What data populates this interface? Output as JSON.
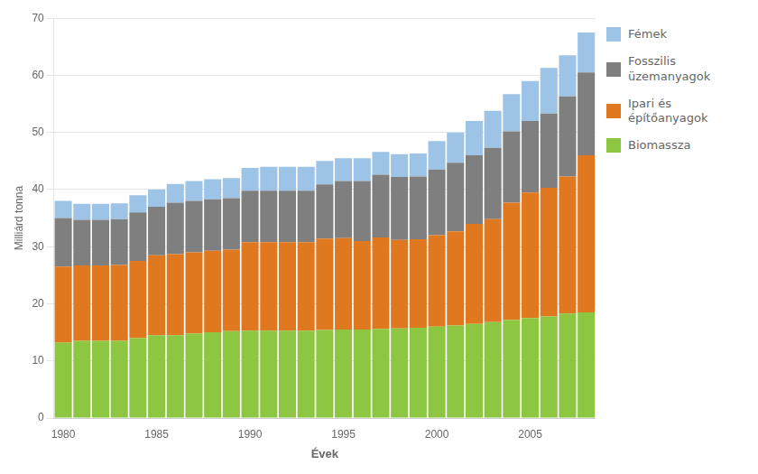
{
  "chart_data": {
    "type": "bar",
    "stacked": true,
    "categories": [
      "1980",
      null,
      null,
      null,
      null,
      "1985",
      null,
      null,
      null,
      null,
      "1990",
      null,
      null,
      null,
      null,
      "1995",
      null,
      null,
      null,
      null,
      "2000",
      null,
      null,
      null,
      null,
      "2005",
      null,
      null,
      null
    ],
    "series": [
      {
        "name": "Biomassza",
        "color": "#8DC641",
        "values": [
          13.2,
          13.5,
          13.5,
          13.5,
          14.0,
          14.5,
          14.5,
          14.8,
          15.0,
          15.2,
          15.3,
          15.3,
          15.3,
          15.3,
          15.4,
          15.5,
          15.5,
          15.6,
          15.7,
          15.8,
          16.0,
          16.2,
          16.5,
          16.8,
          17.2,
          17.5,
          17.8,
          18.3,
          18.5
        ]
      },
      {
        "name": "Ipari és\népítőanyagok",
        "color": "#E07820",
        "values": [
          13.3,
          13.2,
          13.2,
          13.3,
          13.5,
          14.0,
          14.2,
          14.2,
          14.3,
          14.3,
          15.5,
          15.5,
          15.5,
          15.5,
          16.0,
          16.0,
          15.5,
          16.0,
          15.5,
          15.5,
          16.0,
          16.5,
          17.5,
          18.0,
          20.5,
          22.0,
          22.5,
          24.0,
          27.5
        ]
      },
      {
        "name": "Fosszilis\nüzemanyagok",
        "color": "#7F7F7F",
        "values": [
          8.5,
          8.0,
          8.0,
          8.0,
          8.5,
          8.5,
          9.0,
          9.0,
          9.0,
          9.0,
          9.0,
          9.0,
          9.0,
          9.0,
          9.5,
          10.0,
          10.5,
          11.0,
          11.0,
          11.0,
          11.5,
          12.0,
          12.0,
          12.5,
          12.5,
          12.5,
          13.0,
          14.0,
          14.5
        ]
      },
      {
        "name": "Fémek",
        "color": "#9DC3E6",
        "values": [
          3.0,
          2.8,
          2.8,
          2.8,
          3.0,
          3.0,
          3.3,
          3.5,
          3.5,
          3.5,
          4.0,
          4.2,
          4.2,
          4.2,
          4.1,
          4.0,
          4.0,
          4.0,
          4.0,
          4.0,
          5.0,
          5.3,
          6.0,
          6.5,
          6.5,
          7.0,
          8.0,
          7.2,
          7.0
        ]
      }
    ],
    "xlabel": "Évek",
    "ylabel": "Milliárd tonna",
    "ylim": [
      0,
      70
    ],
    "yticks": [
      0,
      10,
      20,
      30,
      40,
      50,
      60,
      70
    ],
    "grid": true,
    "legend": "right"
  }
}
